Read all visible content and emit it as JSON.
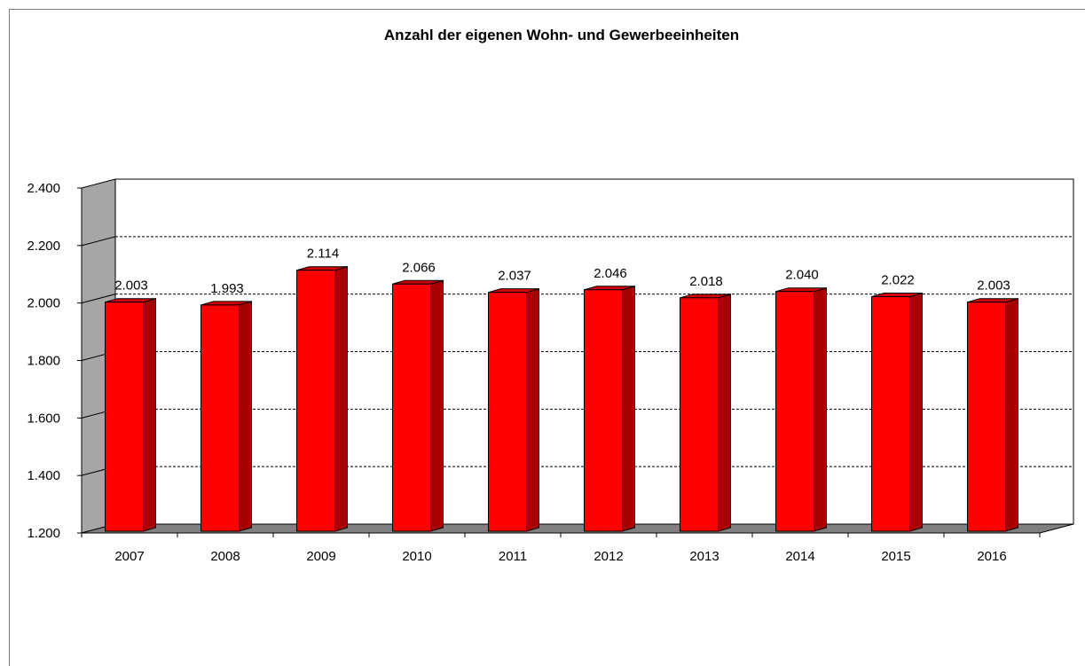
{
  "chart_data": {
    "type": "bar",
    "title": "Anzahl der eigenen Wohn- und Gewerbeeinheiten",
    "categories": [
      "2007",
      "2008",
      "2009",
      "2010",
      "2011",
      "2012",
      "2013",
      "2014",
      "2015",
      "2016"
    ],
    "values": [
      2003,
      1993,
      2114,
      2066,
      2037,
      2046,
      2018,
      2040,
      2022,
      2003
    ],
    "value_labels": [
      "2.003",
      "1.993",
      "2.114",
      "2.066",
      "2.037",
      "2.046",
      "2.018",
      "2.040",
      "2.022",
      "2.003"
    ],
    "ylim": [
      1200,
      2400
    ],
    "yticks": [
      1200,
      1400,
      1600,
      1800,
      2000,
      2200,
      2400
    ],
    "ytick_labels": [
      "1.200",
      "1.400",
      "1.600",
      "1.800",
      "2.000",
      "2.200",
      "2.400"
    ],
    "xlabel": "",
    "ylabel": "",
    "grid": "dashed horizontal",
    "legend": "none",
    "style": "3d-column",
    "colors": {
      "bar_front": "#ff0000",
      "bar_side": "#a80000",
      "bar_top": "#d40000",
      "wall": "#a6a6a6",
      "floor": "#808080"
    }
  }
}
